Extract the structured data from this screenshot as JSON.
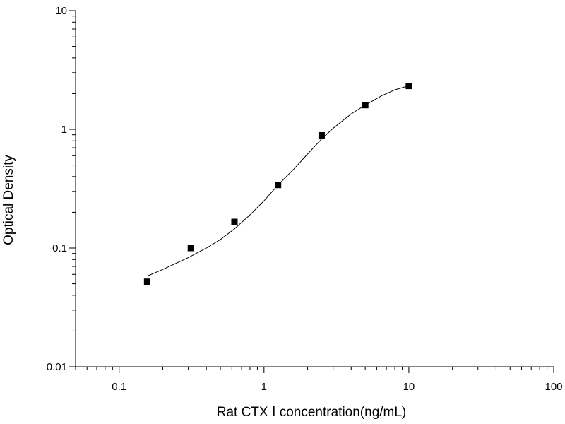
{
  "chart_data": {
    "type": "scatter",
    "title": "",
    "xlabel": "Rat CTX Ⅰ concentration(ng/mL)",
    "ylabel": "Optical Density",
    "x_scale": "log",
    "y_scale": "log",
    "xlim": [
      0.05,
      100
    ],
    "ylim": [
      0.01,
      10
    ],
    "x_tick_labels": [
      "0.1",
      "1",
      "10",
      "100"
    ],
    "y_tick_labels": [
      "0.01",
      "0.1",
      "1",
      "10"
    ],
    "grid": false,
    "legend": "none",
    "series": [
      {
        "marker": "square",
        "color": "#000000",
        "points": [
          {
            "x": 0.156,
            "y": 0.052
          },
          {
            "x": 0.3125,
            "y": 0.1
          },
          {
            "x": 0.625,
            "y": 0.166
          },
          {
            "x": 1.25,
            "y": 0.34
          },
          {
            "x": 2.5,
            "y": 0.89
          },
          {
            "x": 5,
            "y": 1.6
          },
          {
            "x": 10,
            "y": 2.32
          }
        ]
      }
    ],
    "fit_curve": {
      "color": "#000000",
      "points": [
        {
          "x": 0.156,
          "y": 0.058
        },
        {
          "x": 0.2,
          "y": 0.066
        },
        {
          "x": 0.3,
          "y": 0.083
        },
        {
          "x": 0.4,
          "y": 0.1
        },
        {
          "x": 0.5,
          "y": 0.118
        },
        {
          "x": 0.625,
          "y": 0.145
        },
        {
          "x": 0.8,
          "y": 0.19
        },
        {
          "x": 1.0,
          "y": 0.25
        },
        {
          "x": 1.25,
          "y": 0.34
        },
        {
          "x": 1.6,
          "y": 0.46
        },
        {
          "x": 2.0,
          "y": 0.62
        },
        {
          "x": 2.5,
          "y": 0.83
        },
        {
          "x": 3.0,
          "y": 1.02
        },
        {
          "x": 4.0,
          "y": 1.35
        },
        {
          "x": 5.0,
          "y": 1.6
        },
        {
          "x": 6.5,
          "y": 1.92
        },
        {
          "x": 8.0,
          "y": 2.15
        },
        {
          "x": 10.0,
          "y": 2.33
        }
      ]
    }
  }
}
